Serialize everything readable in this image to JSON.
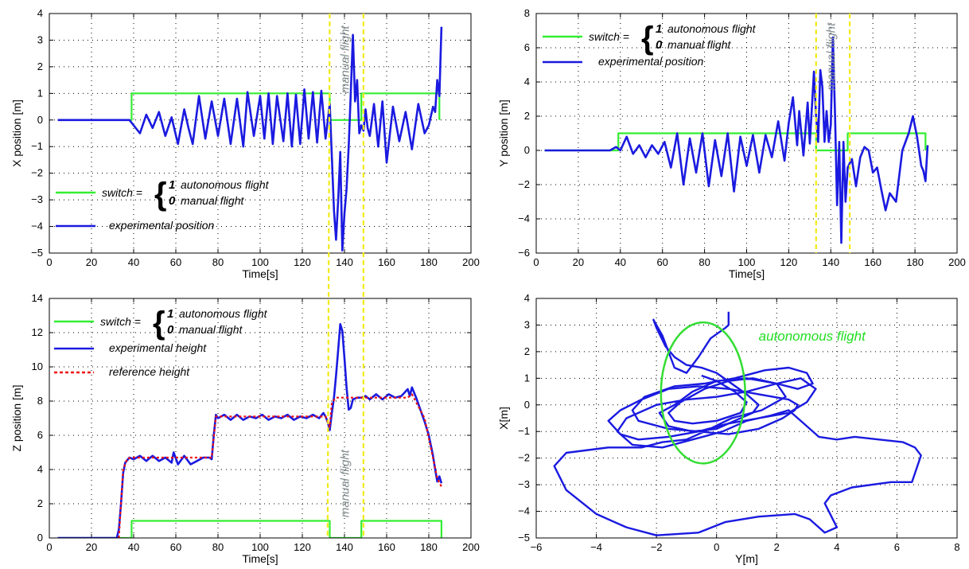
{
  "colors": {
    "switch": "#33ee33",
    "experimental": "#1a1ae0",
    "reference": "#ee1111",
    "divider": "#f2ea1a",
    "annotation": "#808a8c",
    "autonomous": "#33dd33"
  },
  "legend": {
    "switch_label": "switch =",
    "brace": "{",
    "one": "1",
    "zero": "0",
    "autonomous_text": "autonomous flight",
    "manual_text": "manual flight",
    "experimental_position": "experimental position",
    "experimental_height": "experimental  height",
    "reference_height": "reference  height"
  },
  "annotations": {
    "manual_flight": "manual flight",
    "autonomous_flight": "autonomous flight"
  },
  "chart_data": [
    {
      "type": "line",
      "name": "x-position",
      "xlabel": "Time[s]",
      "ylabel": "X position  [m]",
      "xlim": [
        0,
        200
      ],
      "ylim": [
        -5,
        4
      ],
      "xticks": [
        0,
        20,
        40,
        60,
        80,
        100,
        120,
        140,
        160,
        180,
        200
      ],
      "yticks": [
        -5,
        -4,
        -3,
        -2,
        -1,
        0,
        1,
        2,
        3,
        4
      ],
      "grid": true,
      "legend_position": "lower-left",
      "vlines": [
        133,
        149
      ],
      "switch": {
        "x": [
          4,
          39,
          39,
          133,
          133,
          148,
          148,
          185,
          185
        ],
        "y": [
          0,
          0,
          1,
          1,
          0,
          0,
          1,
          1,
          0
        ]
      },
      "experimental": {
        "x": [
          4,
          20,
          38,
          40,
          43,
          46,
          49,
          52,
          55,
          58,
          61,
          64,
          66,
          68,
          71,
          74,
          77,
          80,
          83,
          86,
          89,
          92,
          94,
          97,
          100,
          102,
          104,
          106,
          108,
          111,
          113,
          115,
          117,
          119,
          121,
          123,
          125,
          127,
          129,
          131,
          133,
          135,
          136,
          137,
          138,
          139,
          140,
          141,
          142,
          143,
          144,
          145,
          146,
          147,
          148,
          149,
          150,
          151,
          152,
          154,
          156,
          158,
          160,
          163,
          166,
          169,
          172,
          175,
          178,
          180,
          182,
          183,
          184,
          185,
          186
        ],
        "y": [
          0,
          0,
          0,
          -0.2,
          -0.5,
          0.2,
          -0.3,
          0.3,
          -0.6,
          0.1,
          -0.9,
          0.4,
          -0.3,
          -0.9,
          0.9,
          -0.7,
          0.7,
          -0.6,
          0.8,
          -0.9,
          0.8,
          -1.0,
          1.05,
          -0.6,
          0.9,
          -0.7,
          1.0,
          -0.9,
          0.9,
          -0.8,
          1.0,
          -1.0,
          0.95,
          -0.9,
          1.15,
          -0.7,
          1.05,
          -0.85,
          1.1,
          -0.7,
          0.6,
          -3.4,
          -4.5,
          -3.0,
          -1.2,
          -4.9,
          -3.5,
          -2.6,
          -1.0,
          1.0,
          3.2,
          0.7,
          1.5,
          -0.5,
          -0.2,
          -0.4,
          0.4,
          -0.3,
          -0.6,
          0.6,
          -1.0,
          0.7,
          -1.6,
          0.5,
          -0.8,
          0.3,
          -1.1,
          0.6,
          -0.5,
          -0.2,
          0.5,
          0.3,
          1.5,
          0.9,
          3.5
        ]
      }
    },
    {
      "type": "line",
      "name": "y-position",
      "xlabel": "Time[s]",
      "ylabel": "Y position  [m]",
      "xlim": [
        0,
        200
      ],
      "ylim": [
        -6,
        8
      ],
      "xticks": [
        0,
        20,
        40,
        60,
        80,
        100,
        120,
        140,
        160,
        180,
        200
      ],
      "yticks": [
        -6,
        -4,
        -2,
        0,
        2,
        4,
        6,
        8
      ],
      "grid": true,
      "legend_position": "top-left",
      "vlines": [
        133,
        149
      ],
      "switch": {
        "x": [
          4,
          39,
          39,
          133,
          133,
          148,
          148,
          185,
          185
        ],
        "y": [
          0,
          0,
          1,
          1,
          0,
          0,
          1,
          1,
          0
        ]
      },
      "experimental": {
        "x": [
          4,
          20,
          35,
          38,
          40,
          43,
          46,
          49,
          52,
          55,
          58,
          61,
          64,
          67,
          70,
          73,
          76,
          79,
          82,
          85,
          88,
          91,
          94,
          97,
          100,
          103,
          106,
          109,
          112,
          115,
          118,
          120,
          122,
          124,
          125,
          127,
          129,
          130,
          132,
          133,
          134,
          135,
          136,
          137,
          138,
          139,
          140,
          141,
          142,
          143,
          144,
          145,
          146,
          147,
          148,
          150,
          152,
          154,
          156,
          158,
          160,
          162,
          164,
          166,
          168,
          171,
          174,
          177,
          179,
          181,
          183,
          184,
          185,
          186
        ],
        "y": [
          0,
          0,
          0,
          0.2,
          0,
          0.8,
          -0.2,
          0.3,
          -0.4,
          0.3,
          -0.2,
          0.5,
          -1.0,
          1.0,
          -2.0,
          0.7,
          -1.3,
          1.0,
          -2.1,
          0.6,
          -1.5,
          1.0,
          -2.4,
          0.8,
          -0.9,
          0.9,
          -1.3,
          0.9,
          -0.4,
          1.7,
          -0.6,
          1.6,
          3.1,
          0.3,
          2.3,
          -0.3,
          2.8,
          0.4,
          4.6,
          2.0,
          0.5,
          4.7,
          3.7,
          0.5,
          2.3,
          0.5,
          1.5,
          6.6,
          2.1,
          -3.2,
          0.5,
          -5.4,
          0.5,
          -3.0,
          -1.0,
          -0.5,
          -2.1,
          -0.4,
          0.2,
          0.0,
          -1.3,
          -1.0,
          -2.3,
          -3.5,
          -2.5,
          -3.0,
          0.0,
          1.0,
          2.0,
          0.8,
          -0.9,
          -1.2,
          -1.8,
          0.3
        ]
      }
    },
    {
      "type": "line",
      "name": "z-position",
      "xlabel": "Time[s]",
      "ylabel": "Z position  [m]",
      "xlim": [
        0,
        200
      ],
      "ylim": [
        0,
        14
      ],
      "xticks": [
        0,
        20,
        40,
        60,
        80,
        100,
        120,
        140,
        160,
        180,
        200
      ],
      "yticks": [
        0,
        2,
        4,
        6,
        8,
        10,
        12,
        14
      ],
      "grid": true,
      "legend_position": "top-left",
      "vlines": [
        132,
        149
      ],
      "switch": {
        "x": [
          4,
          39,
          39,
          133,
          133,
          148,
          148,
          186,
          186
        ],
        "y": [
          0,
          0,
          1,
          1,
          0,
          0,
          1,
          1,
          0
        ]
      },
      "reference": {
        "x": [
          33,
          35,
          37,
          40,
          77,
          79,
          131,
          133,
          134,
          136,
          148,
          150,
          170,
          172,
          178,
          184,
          186
        ],
        "y": [
          0,
          4.0,
          4.65,
          4.7,
          4.7,
          7.1,
          7.1,
          6.5,
          7.9,
          8.2,
          8.2,
          8.2,
          8.2,
          8.4,
          7.0,
          3.5,
          3.0
        ]
      },
      "experimental": {
        "x": [
          4,
          32,
          33,
          34,
          35,
          36,
          38,
          40,
          43,
          46,
          49,
          52,
          55,
          58,
          59,
          61,
          64,
          67,
          70,
          73,
          76,
          77,
          78,
          79,
          80,
          83,
          86,
          89,
          92,
          95,
          98,
          101,
          104,
          107,
          110,
          113,
          116,
          119,
          122,
          125,
          128,
          130,
          131,
          132,
          133,
          134,
          135,
          136,
          137,
          138,
          139,
          140,
          141,
          142,
          143,
          144,
          146,
          148,
          150,
          152,
          155,
          158,
          161,
          164,
          167,
          170,
          171,
          172,
          174,
          176,
          178,
          180,
          182,
          183,
          184,
          185,
          186
        ],
        "y": [
          0,
          0,
          0.5,
          2.0,
          3.8,
          4.4,
          4.7,
          4.6,
          4.8,
          4.5,
          4.8,
          4.5,
          4.7,
          4.4,
          5.0,
          4.3,
          4.8,
          4.3,
          4.5,
          4.7,
          4.7,
          4.6,
          6.0,
          7.2,
          7.0,
          7.2,
          6.9,
          7.2,
          6.9,
          7.1,
          7.0,
          7.2,
          6.9,
          7.1,
          7.0,
          7.2,
          6.9,
          7.1,
          7.0,
          7.2,
          7.0,
          7.3,
          7.1,
          6.8,
          6.3,
          7.3,
          8.2,
          9.5,
          11.0,
          12.5,
          12.1,
          10.5,
          8.8,
          7.5,
          7.6,
          8.1,
          8.2,
          8.2,
          8.3,
          8.1,
          8.4,
          8.1,
          8.4,
          8.2,
          8.3,
          8.7,
          8.3,
          8.8,
          8.2,
          7.5,
          6.8,
          6.0,
          4.8,
          4.0,
          3.3,
          3.6,
          3.2
        ]
      }
    },
    {
      "type": "line",
      "name": "xy-trajectory",
      "xlabel": "Y[m]",
      "ylabel": "X[m]",
      "xlim": [
        -6,
        8
      ],
      "ylim": [
        -5,
        4
      ],
      "xticks": [
        -6,
        -4,
        -2,
        0,
        2,
        4,
        6,
        8
      ],
      "yticks": [
        -5,
        -4,
        -3,
        -2,
        -1,
        0,
        1,
        2,
        3,
        4
      ],
      "grid": true,
      "ellipse": {
        "center": [
          -0.45,
          0.45
        ],
        "radius_y": 1.4,
        "radius_x": 2.65
      },
      "trajectory": {
        "x": [
          0.4,
          0.4,
          0.3,
          -0.2,
          -0.6,
          -1.0,
          -1.4,
          -1.8,
          -2.1,
          -2.0,
          -1.7,
          -1.4,
          -1.0,
          -0.5,
          0.0,
          0.5,
          1.0,
          1.4,
          1.2,
          0.6,
          0.0,
          -0.8,
          -1.6,
          -1.9,
          -1.4,
          -0.8,
          0.0,
          1.0,
          2.0,
          2.7,
          3.2,
          3.0,
          2.4,
          1.6,
          0.6,
          -0.4,
          -1.4,
          -2.4,
          -2.8,
          -2.6,
          -1.6,
          -0.6,
          0.4,
          1.4,
          2.2,
          2.6,
          2.7,
          2.4,
          1.4,
          0.4,
          -0.6,
          -1.6,
          -2.5,
          -3.2,
          -3.6,
          -3.2,
          -2.6,
          -1.6,
          -0.6,
          0.4,
          1.4,
          2.4,
          3.0,
          3.3,
          2.8,
          2.0,
          1.0,
          0.0,
          -1.0,
          -2.0,
          -3.0,
          -3.3,
          -2.8,
          -1.8,
          -0.8,
          0.2,
          1.0,
          1.8,
          2.4,
          3.0,
          3.4,
          4.0,
          4.6,
          5.4,
          6.2,
          6.6,
          6.8,
          6.5,
          5.8,
          4.5,
          3.8,
          3.6,
          4.0,
          3.6,
          3.1,
          2.6,
          1.4,
          0.3,
          -0.6,
          -2.0,
          -3.0,
          -4.0,
          -5.0,
          -5.4,
          -5.0,
          -3.6,
          -2.5,
          -1.8,
          -1.0,
          -0.4,
          0.5,
          1.5,
          2.3,
          2.0,
          1.2,
          0.4,
          -0.4,
          -1.2,
          -1.6,
          -1.4,
          -0.8,
          0.0,
          0.8,
          1.0,
          0.6,
          0.0,
          -0.5
        ],
        "y": [
          3.5,
          3.0,
          2.9,
          2.5,
          1.8,
          1.2,
          1.4,
          2.6,
          3.2,
          2.9,
          2.2,
          1.8,
          1.5,
          1.4,
          1.2,
          0.8,
          0.4,
          0.0,
          -0.3,
          -0.6,
          -0.9,
          -1.0,
          -0.8,
          -0.3,
          0.0,
          0.5,
          0.9,
          1.0,
          0.8,
          0.6,
          0.8,
          1.2,
          1.4,
          1.3,
          1.0,
          0.8,
          0.7,
          0.3,
          -0.2,
          -0.6,
          -0.9,
          -1.0,
          -1.1,
          -0.9,
          -0.5,
          -0.2,
          0.0,
          0.2,
          0.4,
          0.6,
          0.7,
          0.6,
          0.2,
          -0.2,
          -0.6,
          -1.1,
          -1.3,
          -1.2,
          -1.0,
          -0.7,
          -0.5,
          -0.3,
          0.1,
          0.6,
          1.0,
          0.8,
          0.5,
          0.3,
          0.2,
          0.0,
          -0.5,
          -1.0,
          -1.5,
          -1.6,
          -1.3,
          -1.0,
          -0.6,
          -0.4,
          -0.2,
          -0.8,
          -1.2,
          -1.3,
          -1.2,
          -1.3,
          -1.4,
          -1.6,
          -1.9,
          -2.9,
          -2.9,
          -3.1,
          -3.4,
          -3.7,
          -4.6,
          -4.8,
          -4.3,
          -4.1,
          -4.2,
          -4.4,
          -4.8,
          -4.9,
          -4.6,
          -4.1,
          -3.2,
          -2.3,
          -1.8,
          -1.6,
          -1.6,
          -1.4,
          -1.3,
          -1.0,
          -0.5,
          -0.2,
          0.3,
          0.8,
          1.0,
          0.9,
          0.6,
          0.1,
          -0.3,
          -0.6,
          -0.7,
          -0.6,
          -0.3,
          0.1,
          0.5,
          0.9,
          1.1
        ]
      }
    }
  ]
}
